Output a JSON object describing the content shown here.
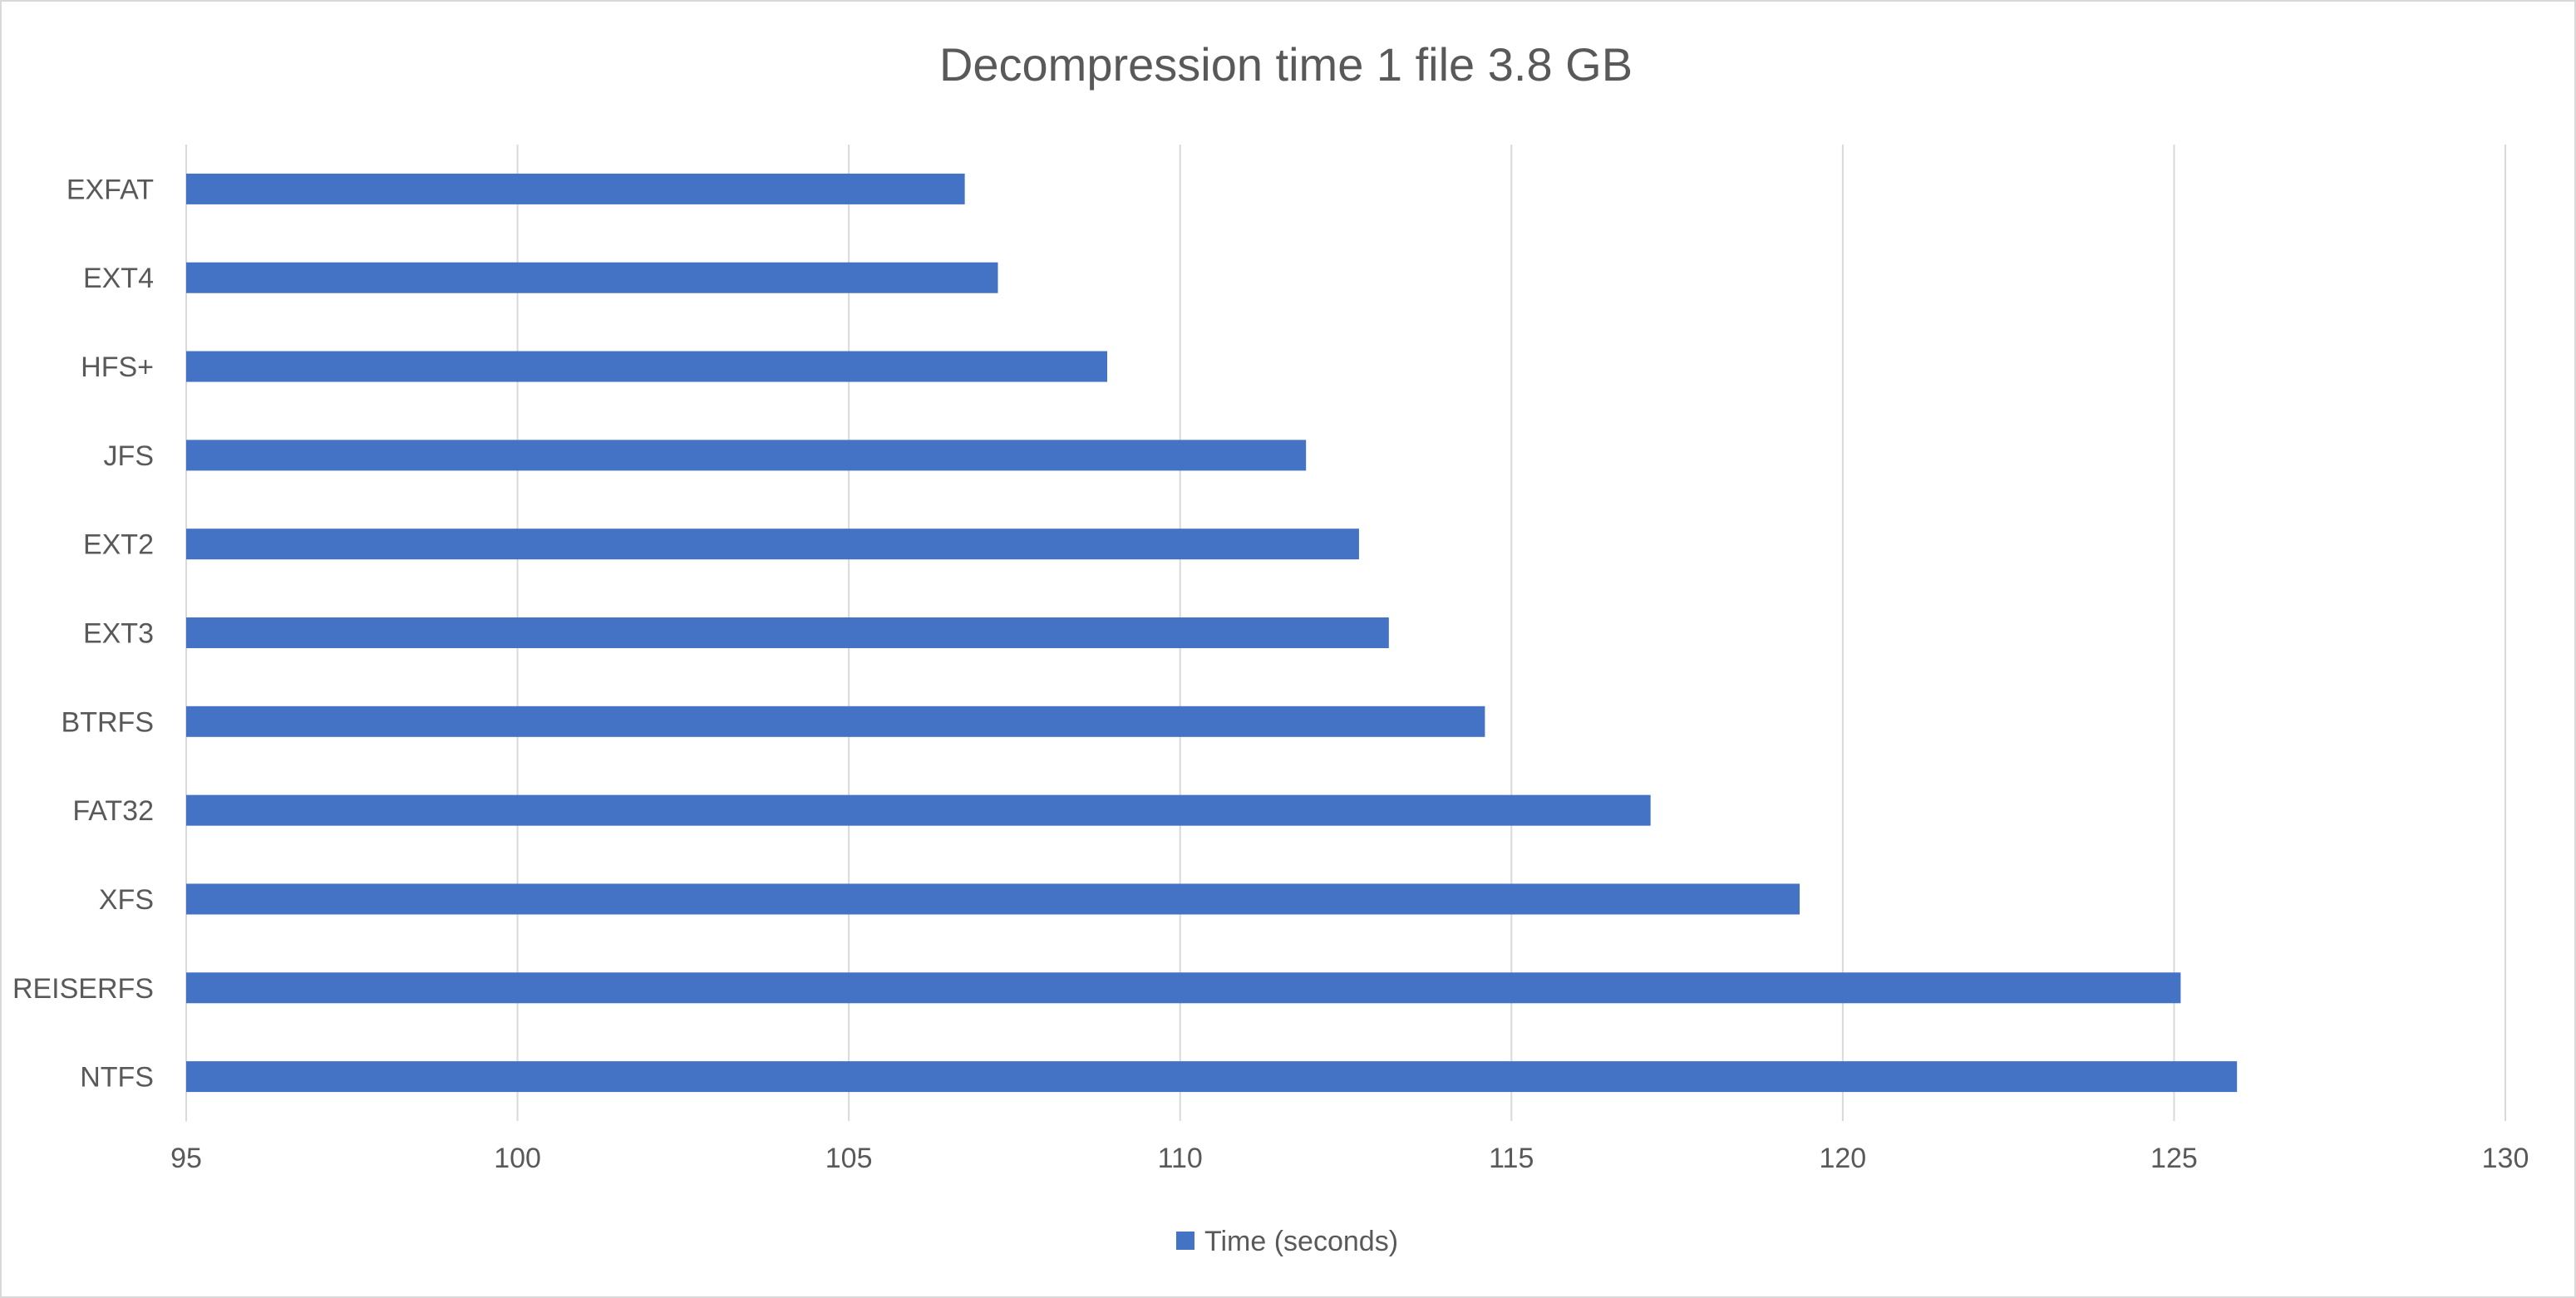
{
  "chart_data": {
    "type": "bar",
    "orientation": "horizontal",
    "title": "Decompression time 1 file 3.8 GB",
    "xlabel": "",
    "ylabel": "",
    "categories": [
      "EXFAT",
      "EXT4",
      "HFS+",
      "JFS",
      "EXT2",
      "EXT3",
      "BTRFS",
      "FAT32",
      "XFS",
      "REISERFS",
      "NTFS"
    ],
    "series": [
      {
        "name": "Time (seconds)",
        "color": "#4472c4",
        "values": [
          106.75,
          107.25,
          108.9,
          111.9,
          112.7,
          113.15,
          114.6,
          117.1,
          119.35,
          125.1,
          125.95
        ]
      }
    ],
    "xlim": [
      95,
      130
    ],
    "xticks": [
      95,
      100,
      105,
      110,
      115,
      120,
      125,
      130
    ],
    "xtick_labels": [
      "95",
      "100",
      "105",
      "110",
      "115",
      "120",
      "125",
      "130"
    ],
    "grid": "vertical",
    "legend": "bottom-center",
    "colors": {
      "bar": "#4472c4",
      "grid": "#d9d9d9",
      "text": "#595959",
      "border": "#d9d9d9"
    }
  }
}
